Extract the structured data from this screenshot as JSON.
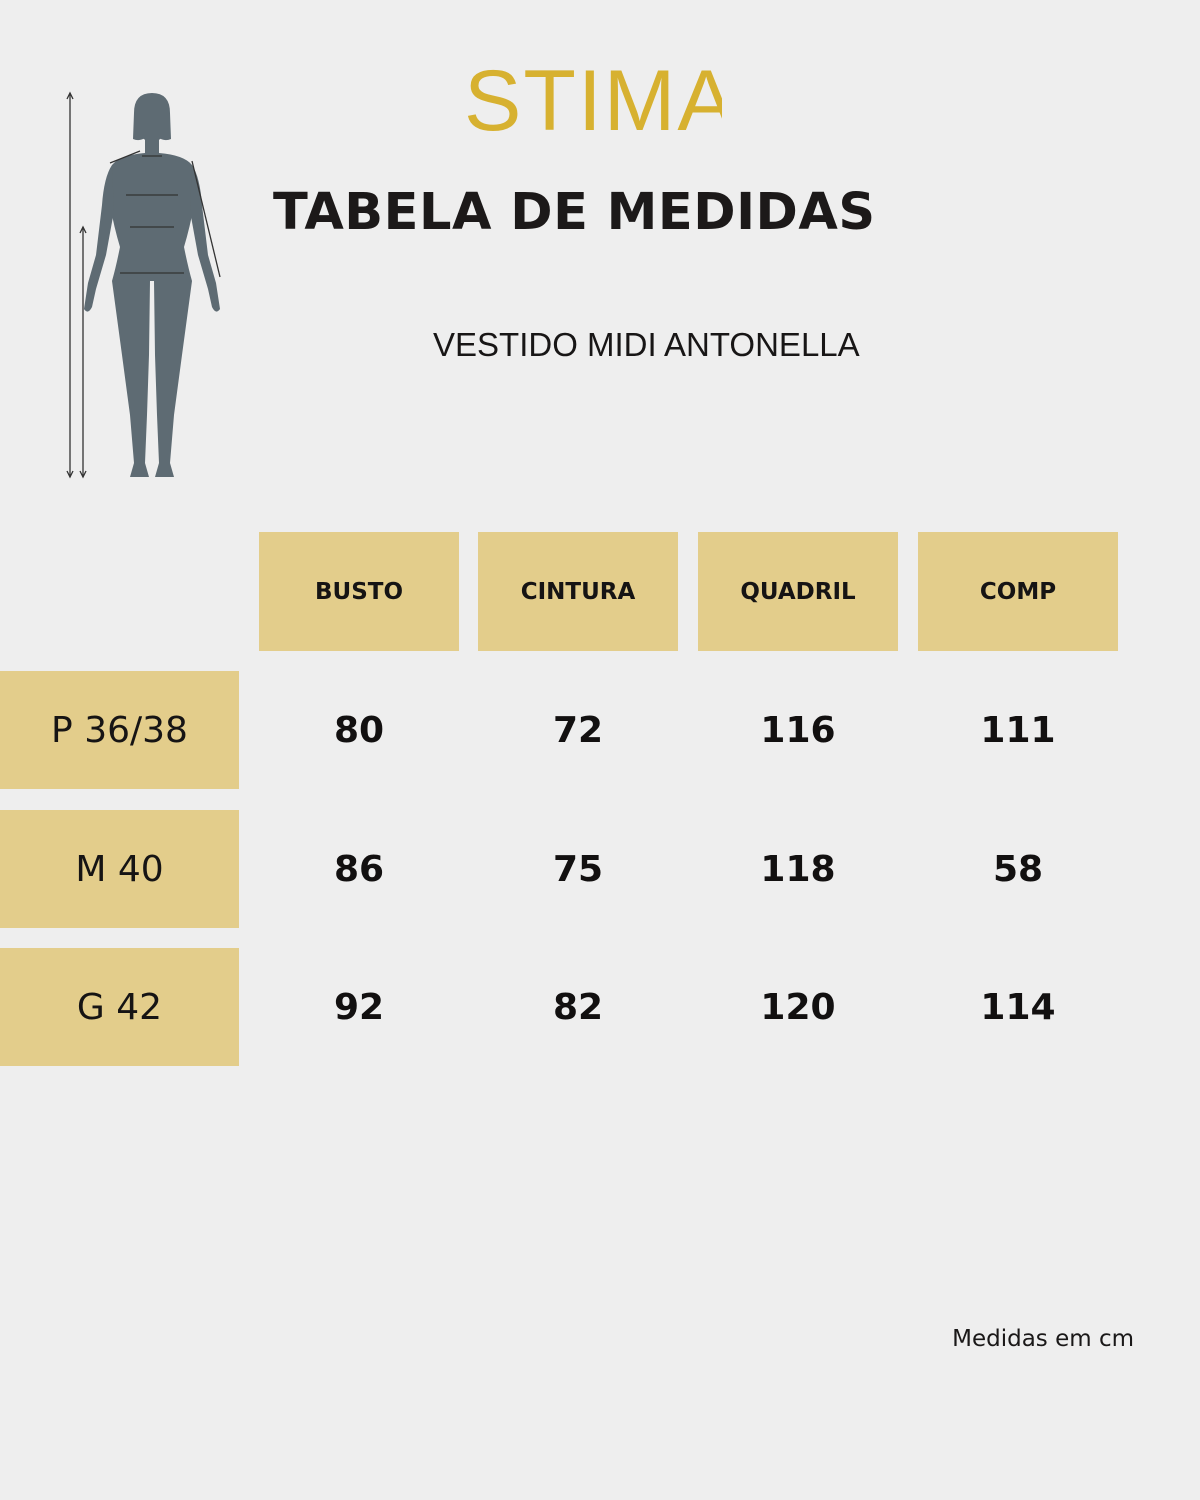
{
  "brand": {
    "logo_text": "STIMA",
    "color": "#d7b130"
  },
  "title": "TABELA DE MEDIDAS",
  "product": "VESTIDO MIDI ANTONELLA",
  "figure_icon": "female-body-measurement-icon",
  "table": {
    "header_color": "#e3cd8b",
    "columns": [
      "BUSTO",
      "CINTURA",
      "QUADRIL",
      "COMP"
    ],
    "rows": [
      {
        "size": "P 36/38",
        "values": [
          "80",
          "72",
          "116",
          "111"
        ]
      },
      {
        "size": "M 40",
        "values": [
          "86",
          "75",
          "118",
          "58"
        ]
      },
      {
        "size": "G 42",
        "values": [
          "92",
          "82",
          "120",
          "114"
        ]
      }
    ]
  },
  "footnote": "Medidas em cm"
}
